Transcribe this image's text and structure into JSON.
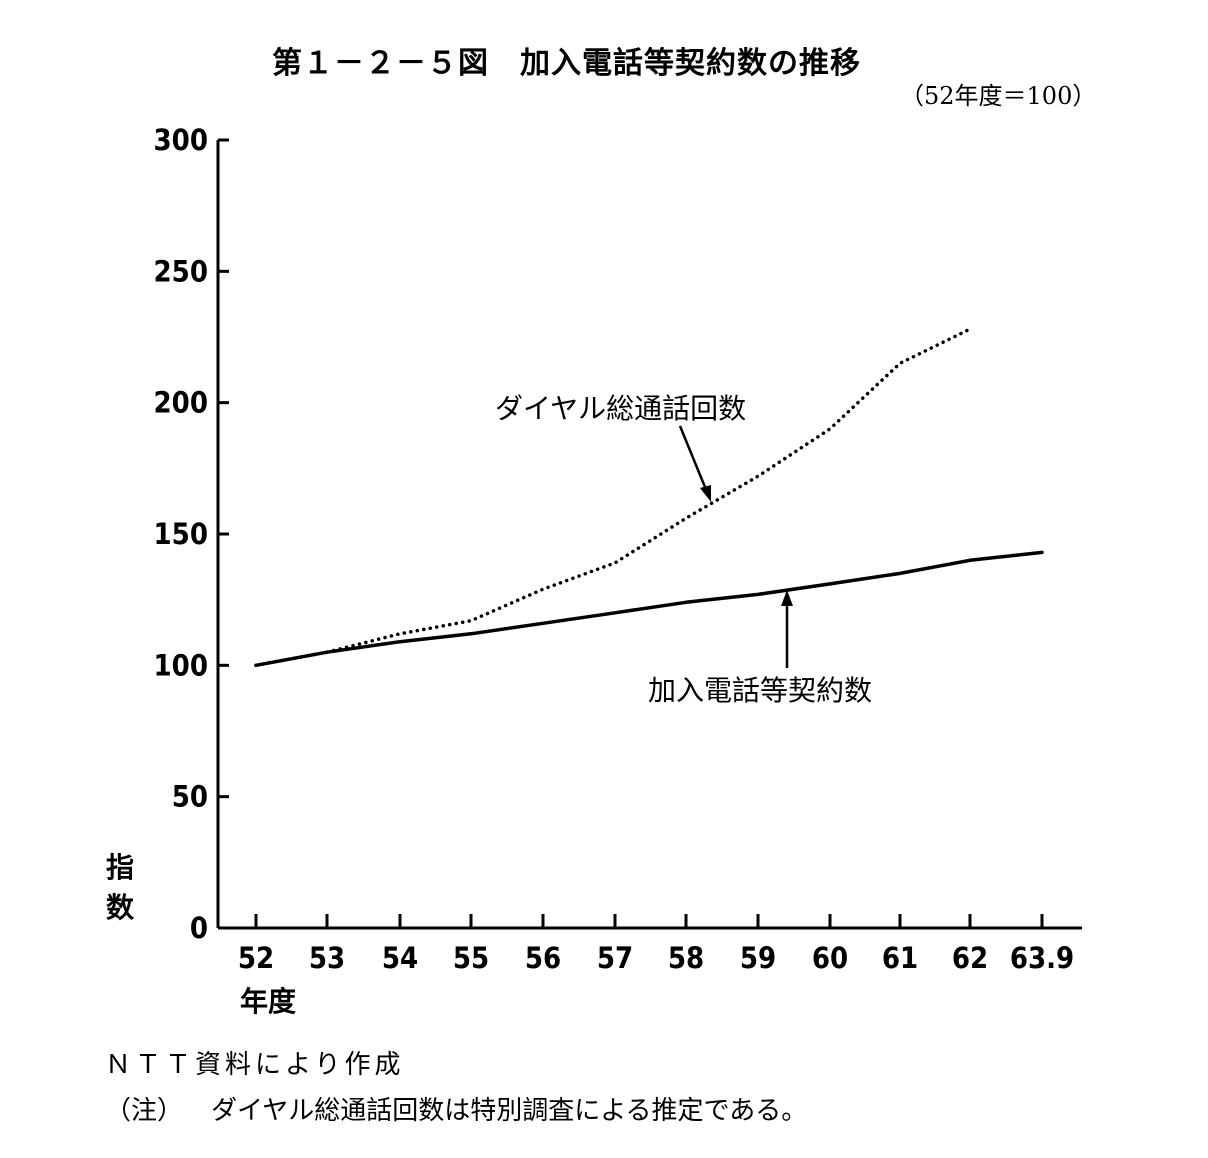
{
  "chart_data": {
    "type": "line",
    "title": "第１－２－５図　加入電話等契約数の推移",
    "subtitle": "（52年度＝100）",
    "xlabel": "年度",
    "ylabel": "指数",
    "ylim": [
      0,
      300
    ],
    "yticks": [
      "0",
      "50",
      "100",
      "150",
      "200",
      "250",
      "300"
    ],
    "x": [
      "52",
      "53",
      "54",
      "55",
      "56",
      "57",
      "58",
      "59",
      "60",
      "61",
      "62",
      "63.9"
    ],
    "series": [
      {
        "name": "ダイヤル総通話回数",
        "style": "dotted",
        "values": [
          100,
          105,
          112,
          117,
          129,
          139,
          156,
          172,
          190,
          215,
          228,
          null
        ]
      },
      {
        "name": "加入電話等契約数",
        "style": "solid",
        "values": [
          100,
          105,
          109,
          112,
          116,
          120,
          124,
          127,
          131,
          135,
          140,
          143
        ]
      }
    ],
    "grid": false,
    "legend": "inline annotations with arrows"
  },
  "source": "ＮＴＴ資料により作成",
  "note_label": "（注）",
  "note_text": "ダイヤル総通話回数は特別調査による推定である。"
}
